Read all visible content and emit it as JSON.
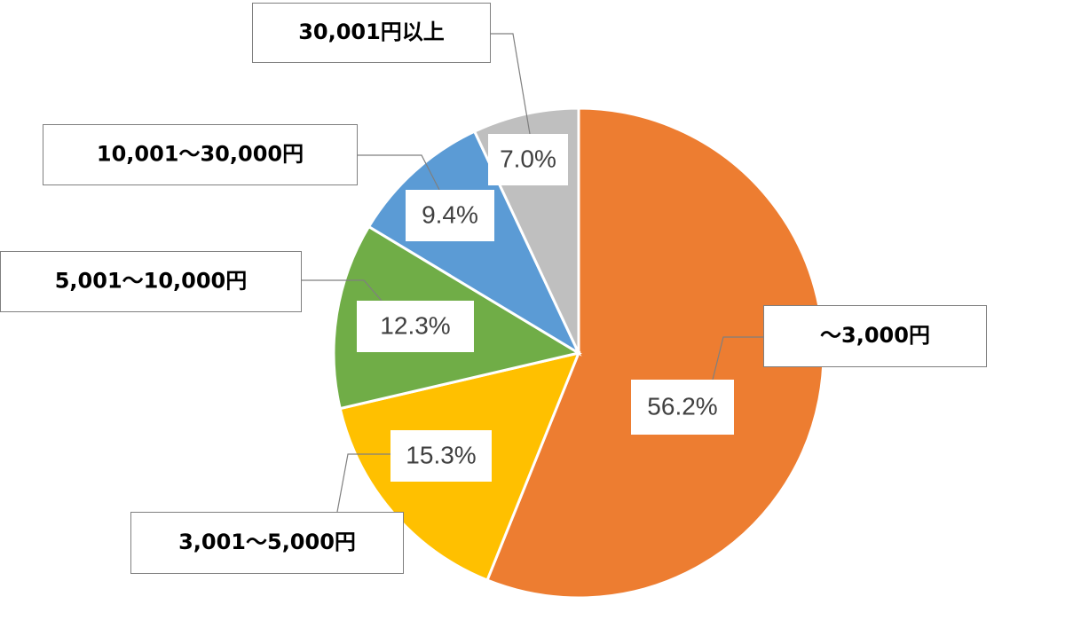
{
  "chart_data": {
    "type": "pie",
    "categories": [
      "～3,000円",
      "3,001～5,000円",
      "5,001～10,000円",
      "10,001～30,000円",
      "30,001円以上"
    ],
    "values": [
      56.2,
      15.3,
      12.3,
      9.4,
      7.0
    ],
    "value_labels": [
      "56.2%",
      "15.3%",
      "12.3%",
      "9.4%",
      "7.0%"
    ],
    "colors": [
      "#ed7d31",
      "#ffc000",
      "#70ad47",
      "#5b9bd5",
      "#bfbfbf"
    ]
  }
}
